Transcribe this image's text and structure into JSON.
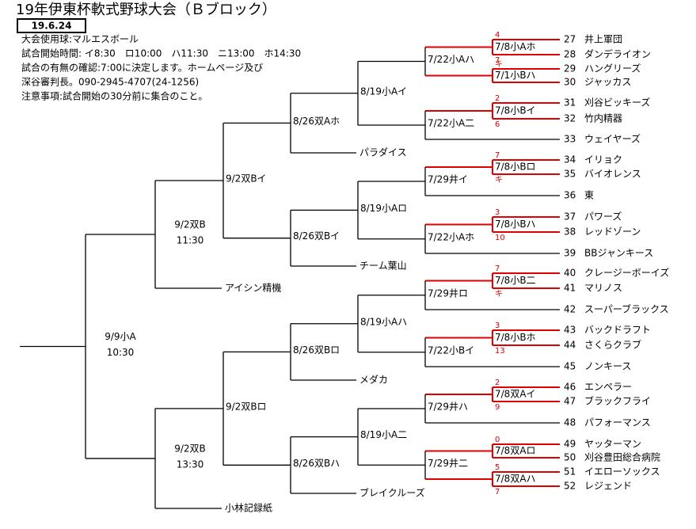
{
  "header": {
    "title": "19年伊東杯軟式野球大会（Ｂブロック）",
    "date": "19.6.24",
    "notes": [
      "大会使用球:マルエスボール",
      "試合開始時間: イ8:30　ロ10:00　ハ11:30　ニ13:00　ホ14:30",
      "試合の有無の確認:7:00に決定します。ホームページ及び",
      "深谷審判長。090-2945-4707(24-1256)",
      "注意事項:試合開始の30分前に集合のこと。"
    ]
  },
  "teams": [
    {
      "number": 27,
      "name": "井上軍団"
    },
    {
      "number": 28,
      "name": "ダンデライオン"
    },
    {
      "number": 29,
      "name": "ハングリーズ"
    },
    {
      "number": 30,
      "name": "ジャッカス"
    },
    {
      "number": 31,
      "name": "刈谷ビッキーズ"
    },
    {
      "number": 32,
      "name": "竹内精器"
    },
    {
      "number": 33,
      "name": "ウェイヤーズ"
    },
    {
      "number": 34,
      "name": "イリョク"
    },
    {
      "number": 35,
      "name": "バイオレンス"
    },
    {
      "number": 36,
      "name": "東"
    },
    {
      "number": 37,
      "name": "パワーズ"
    },
    {
      "number": 38,
      "name": "レッドゾーン"
    },
    {
      "number": 39,
      "name": "BBジャンキース"
    },
    {
      "number": 40,
      "name": "クレージーボーイズ"
    },
    {
      "number": 41,
      "name": "マリノス"
    },
    {
      "number": 42,
      "name": "スーパーブラックス"
    },
    {
      "number": 43,
      "name": "バックドラフト"
    },
    {
      "number": 44,
      "name": "さくらクラブ"
    },
    {
      "number": 45,
      "name": "ノンキース"
    },
    {
      "number": 46,
      "name": "エンペラー"
    },
    {
      "number": 47,
      "name": "ブラックフライ"
    },
    {
      "number": 48,
      "name": "パフォーマンス"
    },
    {
      "number": 49,
      "name": "ヤッターマン"
    },
    {
      "number": 50,
      "name": "刈谷豊田総合病院"
    },
    {
      "number": 51,
      "name": "イエローソックス"
    },
    {
      "number": 52,
      "name": "レジェンド"
    }
  ],
  "first_round": [
    {
      "label": "7/8小Aホ",
      "top": "4",
      "bottom": "7"
    },
    {
      "label": "7/1小Bハ",
      "top": "キ"
    },
    {
      "label": "7/8小Bイ",
      "top": "2",
      "bottom": "6"
    },
    {
      "label": "7/8小Bロ",
      "top": "7",
      "bottom": "キ"
    },
    {
      "label": "7/8小Bハ",
      "top": "3",
      "bottom": "10"
    },
    {
      "label": "7/8小B二",
      "top": "7",
      "bottom": "キ"
    },
    {
      "label": "7/8小Bホ",
      "top": "3",
      "bottom": "13"
    },
    {
      "label": "7/8双Aイ",
      "top": "2",
      "bottom": "9"
    },
    {
      "label": "7/8双Aロ",
      "top": "0"
    },
    {
      "label": "7/8双Aハ",
      "top": "5",
      "bottom": "7"
    }
  ],
  "matches": [
    {
      "label": "7/22小Aハ"
    },
    {
      "label": "7/22小A二"
    },
    {
      "label": "7/29井イ"
    },
    {
      "label": "7/22小Aホ"
    },
    {
      "label": "7/29井ロ"
    },
    {
      "label": "7/22小Bイ"
    },
    {
      "label": "7/29井ハ"
    },
    {
      "label": "7/29井二"
    },
    {
      "label": "8/19小Aイ"
    },
    {
      "label": "8/19小Aロ"
    },
    {
      "label": "8/19小Aハ"
    },
    {
      "label": "8/19小A二"
    },
    {
      "label": "8/26双Aホ"
    },
    {
      "label": "8/26双Bイ"
    },
    {
      "label": "8/26双Bロ"
    },
    {
      "label": "8/26双Bハ"
    },
    {
      "label": "9/2双Bイ"
    },
    {
      "label": "9/2双Bロ"
    },
    {
      "label": "9/2双B",
      "time": "11:30"
    },
    {
      "label": "9/2双B",
      "time": "13:30"
    },
    {
      "label": "9/9小A",
      "time": "10:30"
    }
  ],
  "seeds": [
    "パラダイス",
    "チーム葉山",
    "メダカ",
    "ブレイクルーズ",
    "アイシン精機",
    "小林記録紙"
  ]
}
